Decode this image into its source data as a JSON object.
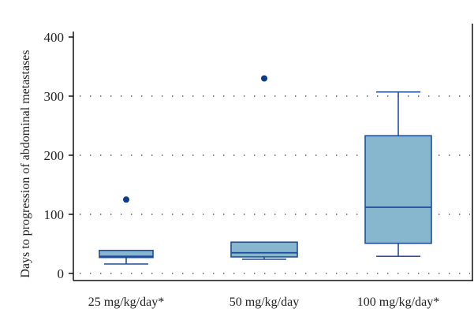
{
  "chart_data": {
    "type": "box",
    "title": "",
    "xlabel": "",
    "ylabel": "Days to progression of abdominal metastases",
    "ylim": [
      0,
      400
    ],
    "yticks": [
      0,
      100,
      200,
      300,
      400
    ],
    "grid": "horizontal-dotted",
    "categories": [
      "25 mg/kg/day*",
      "50 mg/kg/day",
      "100 mg/kg/day*"
    ],
    "series": [
      {
        "name": "25 mg/kg/day*",
        "whisker_low": 16,
        "q1": 27,
        "median": 29,
        "q3": 39,
        "whisker_high": 39,
        "outliers": [
          125
        ]
      },
      {
        "name": "50 mg/kg/day",
        "whisker_low": 24,
        "q1": 28,
        "median": 35,
        "q3": 53,
        "whisker_high": 53,
        "outliers": [
          330
        ]
      },
      {
        "name": "100 mg/kg/day*",
        "whisker_low": 29,
        "q1": 51,
        "median": 112,
        "q3": 233,
        "whisker_high": 307,
        "outliers": []
      }
    ],
    "colors": {
      "box_fill": "#87b6cf",
      "box_stroke": "#1f4e96",
      "outlier": "#0d3a8a",
      "axis": "#111111",
      "grid": "#555555"
    }
  }
}
